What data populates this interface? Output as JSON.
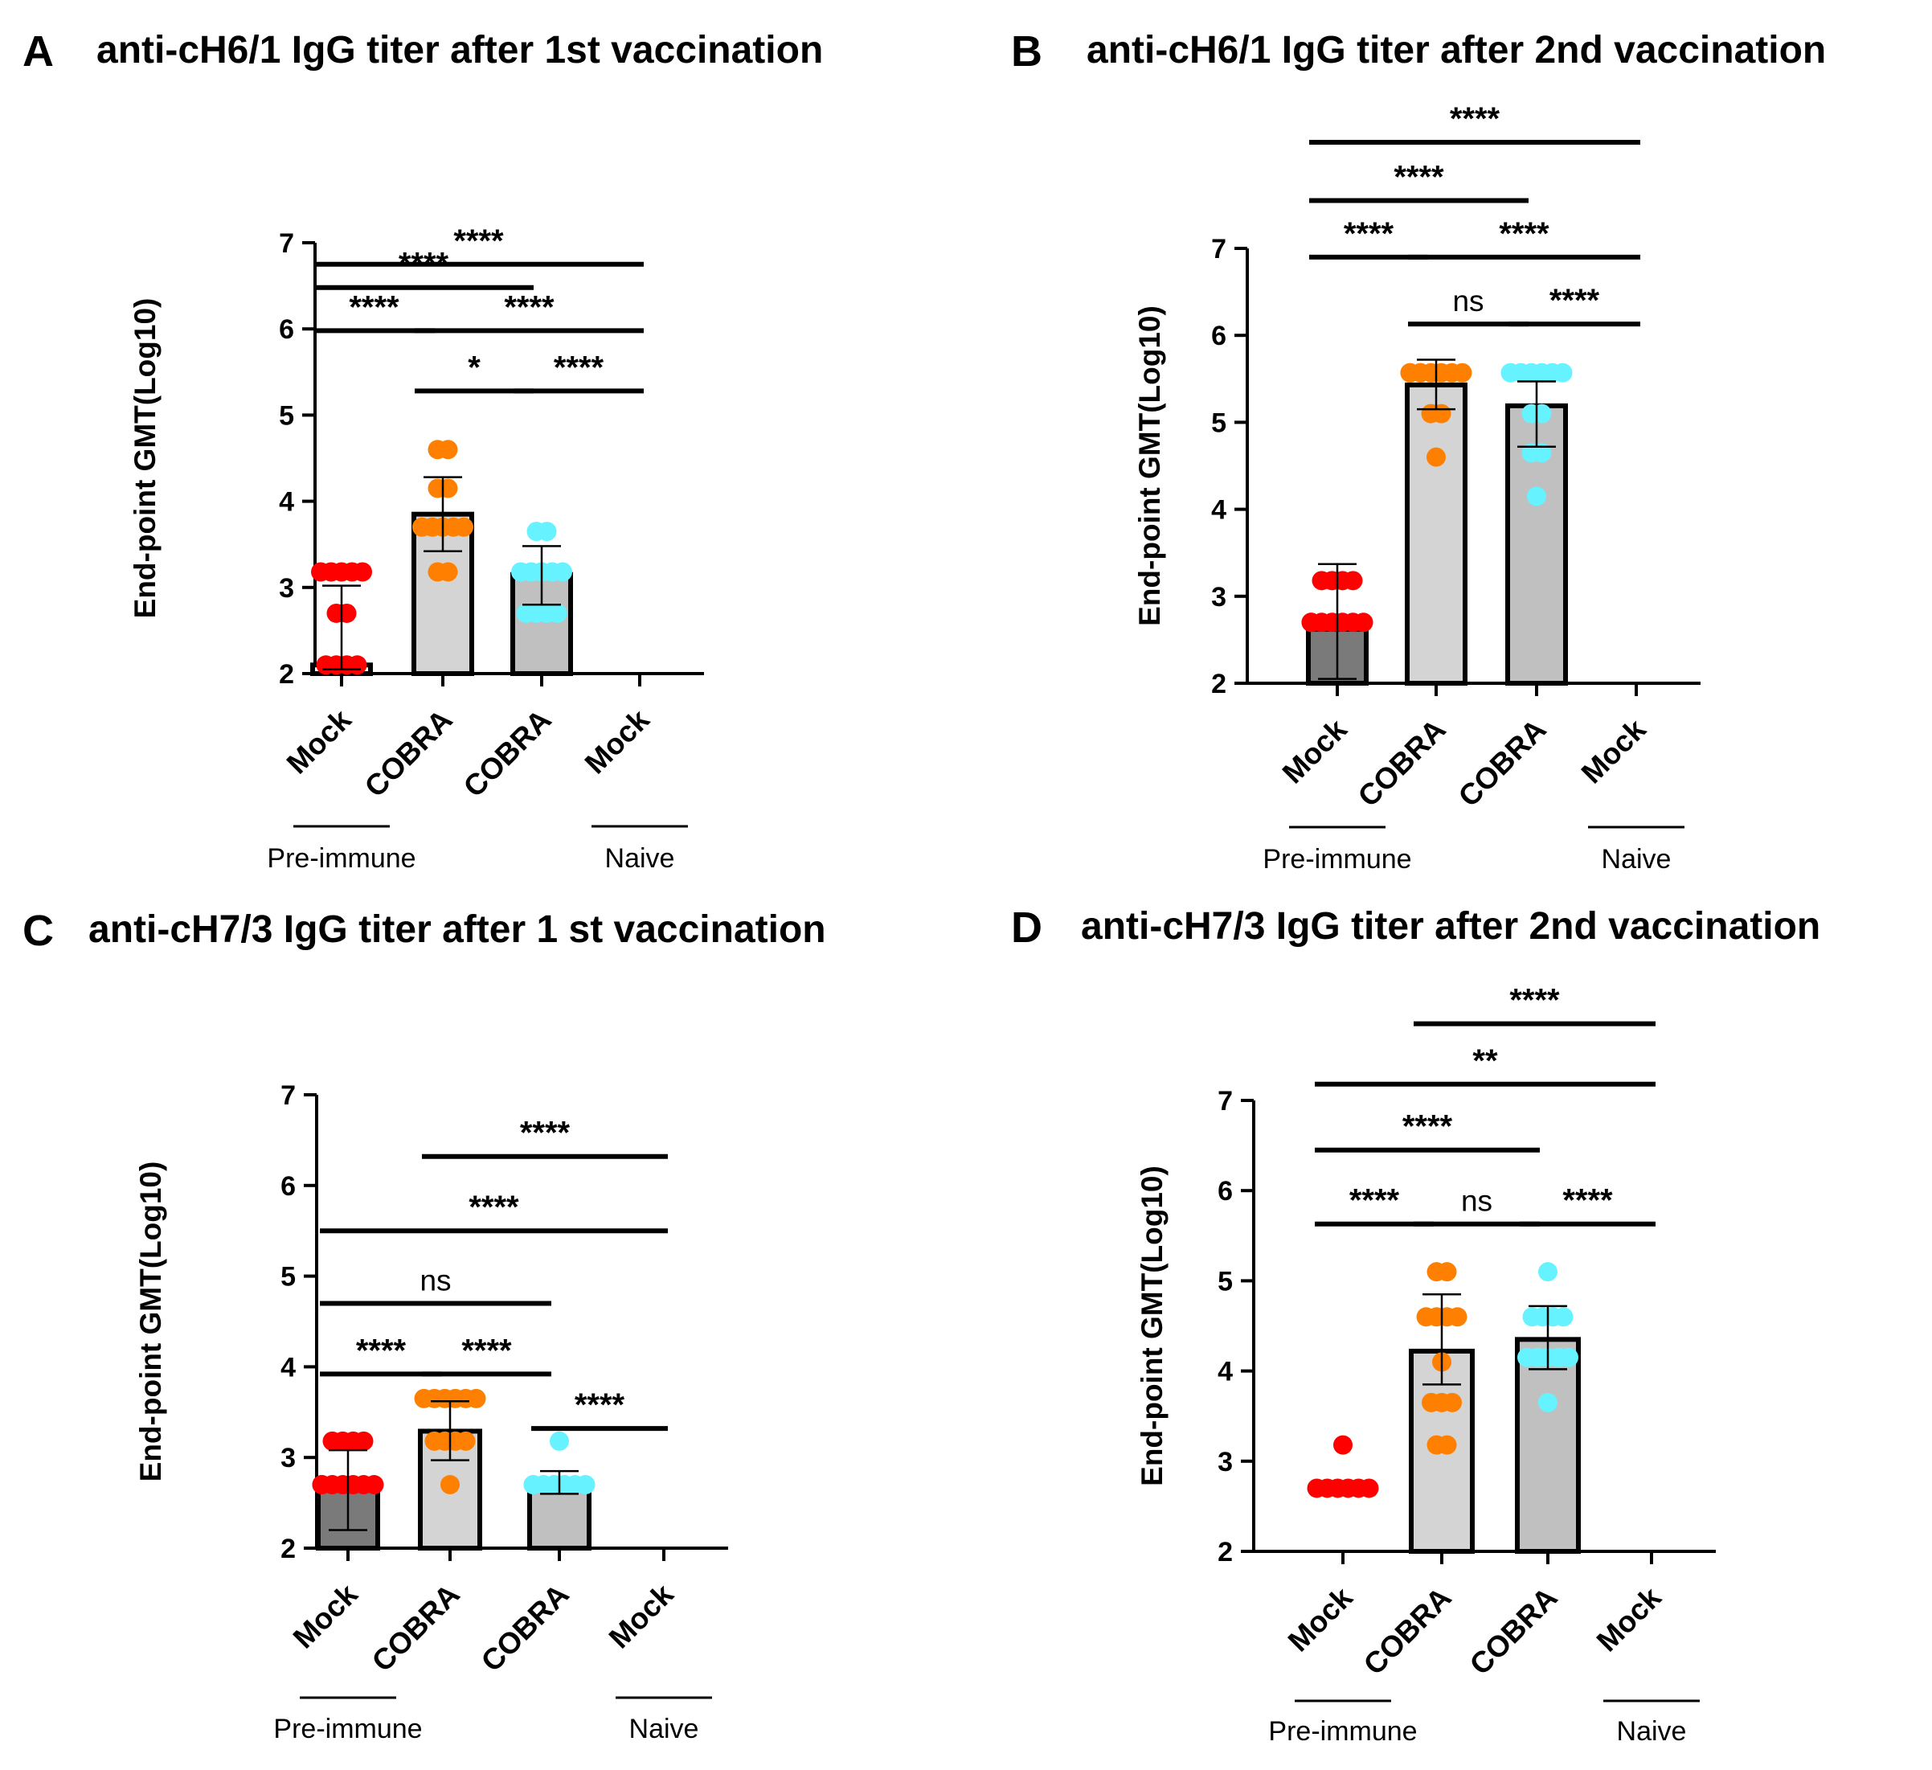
{
  "chart_data": [
    {
      "type": "bar",
      "panel": "A",
      "title": "anti-cH6/1 IgG titer after 1st vaccination",
      "xlabel": "",
      "ylabel": "End-point GMT(Log10)",
      "ylim": [
        2,
        7
      ],
      "yticks": [
        2,
        3,
        4,
        5,
        6,
        7
      ],
      "categories": [
        "Mock",
        "COBRA",
        "COBRA",
        "Mock"
      ],
      "groups": [
        {
          "label": "Pre-immune",
          "from": 0,
          "to": 0
        },
        {
          "label": "Naive",
          "from": 3,
          "to": 3
        }
      ],
      "values": [
        2.1,
        3.85,
        3.15,
        2.0
      ],
      "errors": [
        [
          2.05,
          3.02
        ],
        [
          3.42,
          4.28
        ],
        [
          2.8,
          3.48
        ],
        null
      ],
      "points": [
        [
          3.18,
          3.18,
          3.18,
          3.18,
          3.18,
          2.7,
          2.7,
          2.1,
          2.1,
          2.1,
          2.1
        ],
        [
          4.6,
          4.6,
          4.15,
          4.15,
          3.7,
          3.7,
          3.7,
          3.7,
          3.7,
          3.18,
          3.18
        ],
        [
          3.65,
          3.65,
          3.18,
          3.18,
          3.18,
          3.18,
          3.18,
          2.7,
          2.7,
          2.7,
          2.7
        ],
        []
      ],
      "colors": [
        "#ff0000",
        "#ff8000",
        "#66f2ff",
        "#ffffff"
      ],
      "bar_fills": [
        "#ffffff",
        "#d4d4d4",
        "#c0c0c0",
        "#ffffff"
      ],
      "sig": [
        {
          "from": 0,
          "to": 3,
          "label": "****",
          "level": 6.75
        },
        {
          "from": 0,
          "to": 2,
          "label": "****",
          "level": 6.48
        },
        {
          "from": 0,
          "to": 1,
          "label": "****",
          "level": 5.98
        },
        {
          "from": 1,
          "to": 3,
          "label": "****",
          "level": 5.98
        },
        {
          "from": 1,
          "to": 2,
          "label": "*",
          "level": 5.28
        },
        {
          "from": 2,
          "to": 3,
          "label": "****",
          "level": 5.28
        }
      ]
    },
    {
      "type": "bar",
      "panel": "B",
      "title": "anti-cH6/1 IgG titer after 2nd vaccination",
      "xlabel": "",
      "ylabel": "End-point GMT(Log10)",
      "ylim": [
        2,
        7
      ],
      "yticks": [
        2,
        3,
        4,
        5,
        6,
        7
      ],
      "categories": [
        "Mock",
        "COBRA",
        "COBRA",
        "Mock"
      ],
      "groups": [
        {
          "label": "Pre-immune",
          "from": 0,
          "to": 0
        },
        {
          "label": "Naive",
          "from": 3,
          "to": 3
        }
      ],
      "values": [
        2.62,
        5.43,
        5.19,
        2.0
      ],
      "errors": [
        [
          2.05,
          3.37
        ],
        [
          5.15,
          5.72
        ],
        [
          4.72,
          5.47
        ],
        null
      ],
      "points": [
        [
          3.18,
          3.18,
          3.18,
          3.18,
          2.7,
          2.7,
          2.7,
          2.7,
          2.7,
          2.7,
          2.7
        ],
        [
          5.57,
          5.57,
          5.57,
          5.57,
          5.57,
          5.57,
          5.57,
          5.57,
          5.1,
          5.1,
          4.6
        ],
        [
          5.57,
          5.57,
          5.57,
          5.57,
          5.57,
          5.57,
          5.1,
          5.1,
          4.65,
          4.65,
          4.15
        ],
        []
      ],
      "colors": [
        "#ff0000",
        "#ff8000",
        "#66f2ff",
        "#ffffff"
      ],
      "bar_fills": [
        "#7a7a7a",
        "#d4d4d4",
        "#c0c0c0",
        "#ffffff"
      ],
      "sig": [
        {
          "from": 0,
          "to": 3,
          "label": "****",
          "level": 8.22
        },
        {
          "from": 0,
          "to": 2,
          "label": "****",
          "level": 7.55
        },
        {
          "from": 0,
          "to": 1,
          "label": "****",
          "level": 6.9
        },
        {
          "from": 1,
          "to": 3,
          "label": "****",
          "level": 6.9
        },
        {
          "from": 1,
          "to": 2,
          "label": "ns",
          "level": 6.13
        },
        {
          "from": 2,
          "to": 3,
          "label": "****",
          "level": 6.13
        }
      ]
    },
    {
      "type": "bar",
      "panel": "C",
      "title": "anti-cH7/3 IgG titer after 1 st vaccination",
      "xlabel": "",
      "ylabel": "End-point GMT(Log10)",
      "ylim": [
        2,
        7
      ],
      "yticks": [
        2,
        3,
        4,
        5,
        6,
        7
      ],
      "categories": [
        "Mock",
        "COBRA",
        "COBRA",
        "Mock"
      ],
      "groups": [
        {
          "label": "Pre-immune",
          "from": 0,
          "to": 0
        },
        {
          "label": "Naive",
          "from": 3,
          "to": 3
        }
      ],
      "values": [
        2.65,
        3.29,
        2.72,
        2.0
      ],
      "errors": [
        [
          2.2,
          3.08
        ],
        [
          2.97,
          3.62
        ],
        [
          2.6,
          2.85
        ],
        null
      ],
      "points": [
        [
          3.18,
          3.18,
          3.18,
          3.18,
          2.7,
          2.7,
          2.7,
          2.7,
          2.7,
          2.7,
          2.7
        ],
        [
          3.65,
          3.65,
          3.65,
          3.65,
          3.65,
          3.65,
          3.18,
          3.18,
          3.18,
          3.18,
          2.7
        ],
        [
          3.18,
          2.7,
          2.7,
          2.7,
          2.7,
          2.7,
          2.7,
          2.7,
          2.7,
          2.7,
          2.7
        ],
        []
      ],
      "colors": [
        "#ff0000",
        "#ff8000",
        "#66f2ff",
        "#ffffff"
      ],
      "bar_fills": [
        "#7a7a7a",
        "#d4d4d4",
        "#c0c0c0",
        "#ffffff"
      ],
      "sig": [
        {
          "from": 1,
          "to": 3,
          "label": "****",
          "level": 6.32
        },
        {
          "from": 0,
          "to": 3,
          "label": "****",
          "level": 5.5
        },
        {
          "from": 0,
          "to": 2,
          "label": "ns",
          "level": 4.7
        },
        {
          "from": 0,
          "to": 1,
          "label": "****",
          "level": 3.92
        },
        {
          "from": 1,
          "to": 2,
          "label": "****",
          "level": 3.92
        },
        {
          "from": 2,
          "to": 3,
          "label": "****",
          "level": 3.32
        }
      ]
    },
    {
      "type": "bar",
      "panel": "D",
      "title": "anti-cH7/3 IgG titer after 2nd vaccination",
      "xlabel": "",
      "ylabel": "End-point GMT(Log10)",
      "ylim": [
        2,
        7
      ],
      "yticks": [
        2,
        3,
        4,
        5,
        6,
        7
      ],
      "categories": [
        "Mock",
        "COBRA",
        "COBRA",
        "Mock"
      ],
      "groups": [
        {
          "label": "Pre-immune",
          "from": 0,
          "to": 0
        },
        {
          "label": "Naive",
          "from": 3,
          "to": 3
        }
      ],
      "values": [
        2.0,
        4.22,
        4.35,
        2.0
      ],
      "errors": [
        null,
        [
          3.85,
          4.85
        ],
        [
          4.02,
          4.72
        ],
        null
      ],
      "points": [
        [
          3.18,
          2.7,
          2.7,
          2.7,
          2.7,
          2.7,
          2.7
        ],
        [
          5.1,
          5.1,
          4.6,
          4.6,
          4.6,
          4.6,
          4.1,
          3.65,
          3.65,
          3.65,
          3.18,
          3.18
        ],
        [
          5.1,
          4.6,
          4.6,
          4.6,
          4.6,
          4.15,
          4.15,
          4.15,
          4.15,
          4.15,
          3.65
        ],
        []
      ],
      "colors": [
        "#ff0000",
        "#ff8000",
        "#66f2ff",
        "#ffffff"
      ],
      "bar_fills": [
        "#ffffff",
        "#d4d4d4",
        "#c0c0c0",
        "#ffffff"
      ],
      "sig": [
        {
          "from": 1,
          "to": 3,
          "label": "****",
          "level": 7.85
        },
        {
          "from": 0,
          "to": 3,
          "label": "**",
          "level": 7.18
        },
        {
          "from": 0,
          "to": 2,
          "label": "****",
          "level": 6.45
        },
        {
          "from": 0,
          "to": 1,
          "label": "****",
          "level": 5.63
        },
        {
          "from": 1,
          "to": 2,
          "label": "ns",
          "level": 5.63
        },
        {
          "from": 2,
          "to": 3,
          "label": "****",
          "level": 5.63
        }
      ]
    }
  ]
}
